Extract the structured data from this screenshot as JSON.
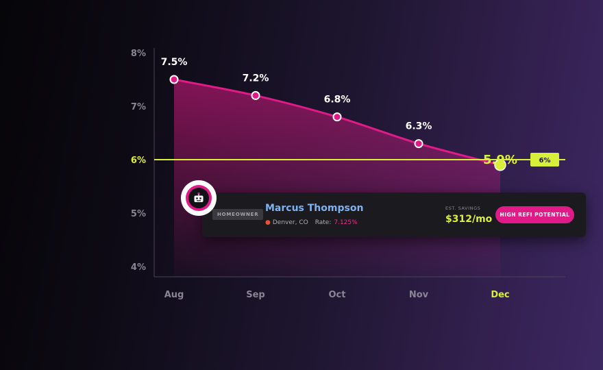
{
  "colors": {
    "line": "#e01a86",
    "threshold": "#d8f03a",
    "point_fill": "#e01a86",
    "point_stroke": "#ffffff",
    "highlight_point": "#d8f03a"
  },
  "chart_data": {
    "type": "area",
    "categories": [
      "Aug",
      "Sep",
      "Oct",
      "Nov",
      "Dec"
    ],
    "values": [
      7.5,
      7.2,
      6.8,
      6.3,
      5.9
    ],
    "point_labels": [
      "7.5%",
      "7.2%",
      "6.8%",
      "6.3%",
      "5.9%"
    ],
    "highlight_index": 4,
    "y_ticks": [
      {
        "value": 8,
        "label": "8%"
      },
      {
        "value": 7,
        "label": "7%"
      },
      {
        "value": 6,
        "label": "6%"
      },
      {
        "value": 5,
        "label": "5%"
      },
      {
        "value": 4,
        "label": "4%"
      }
    ],
    "ylim": [
      4,
      8
    ],
    "threshold": {
      "value": 6,
      "tag": "6%"
    },
    "grid": false
  },
  "profile": {
    "icon": "robot-icon",
    "badge": "HOMEOWNER",
    "name": "Marcus Thompson",
    "location_icon": "pin-icon",
    "location": "Denver, CO",
    "rate_label": "Rate:",
    "rate_value": "7.125%",
    "savings_label": "EST. SAVINGS",
    "savings_value": "$312/mo",
    "cta": "HIGH REFI POTENTIAL"
  }
}
